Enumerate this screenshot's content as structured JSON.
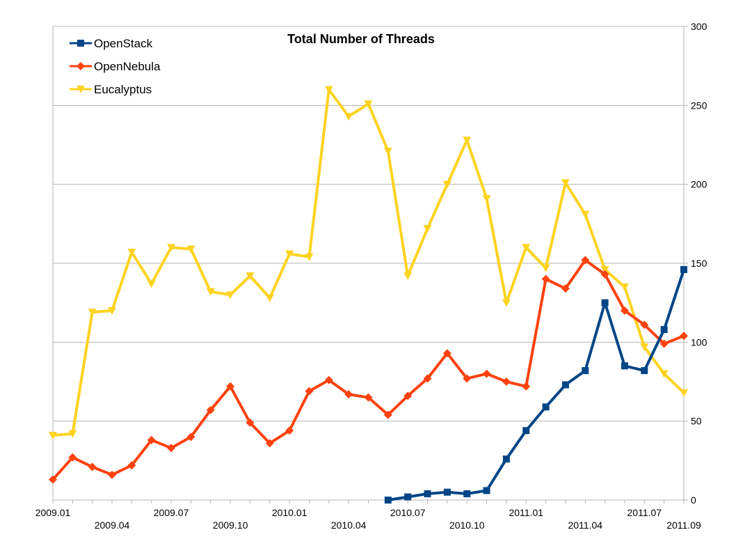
{
  "chart_data": {
    "type": "line",
    "title": "Total Number of Threads",
    "xlabel": "",
    "ylabel": "",
    "ylim": [
      0,
      300
    ],
    "yticks": [
      0,
      50,
      100,
      150,
      200,
      250,
      300
    ],
    "y_axis_side": "right",
    "grid": true,
    "legend_position": "top-left",
    "x": [
      "2009.01",
      "2009.02",
      "2009.03",
      "2009.04",
      "2009.05",
      "2009.06",
      "2009.07",
      "2009.08",
      "2009.09",
      "2009.10",
      "2009.11",
      "2009.12",
      "2010.01",
      "2010.02",
      "2010.03",
      "2010.04",
      "2010.05",
      "2010.06",
      "2010.07",
      "2010.08",
      "2010.09",
      "2010.10",
      "2010.11",
      "2010.12",
      "2011.01",
      "2011.02",
      "2011.03",
      "2011.04",
      "2011.05",
      "2011.06",
      "2011.07",
      "2011.08",
      "2011.09"
    ],
    "xtick_labels": [
      {
        "label": "2009.01",
        "index": 0,
        "row": 0
      },
      {
        "label": "2009.04",
        "index": 3,
        "row": 1
      },
      {
        "label": "2009.07",
        "index": 6,
        "row": 0
      },
      {
        "label": "2009.10",
        "index": 9,
        "row": 1
      },
      {
        "label": "2010.01",
        "index": 12,
        "row": 0
      },
      {
        "label": "2010.04",
        "index": 15,
        "row": 1
      },
      {
        "label": "2010.07",
        "index": 18,
        "row": 0
      },
      {
        "label": "2010.10",
        "index": 21,
        "row": 1
      },
      {
        "label": "2011.01",
        "index": 24,
        "row": 0
      },
      {
        "label": "2011.04",
        "index": 27,
        "row": 1
      },
      {
        "label": "2011.07",
        "index": 30,
        "row": 0
      },
      {
        "label": "2011.09",
        "index": 32,
        "row": 1
      }
    ],
    "series": [
      {
        "name": "OpenStack",
        "color": "#004586",
        "marker": "square",
        "values": [
          null,
          null,
          null,
          null,
          null,
          null,
          null,
          null,
          null,
          null,
          null,
          null,
          null,
          null,
          null,
          null,
          null,
          0,
          2,
          4,
          5,
          4,
          6,
          26,
          44,
          59,
          73,
          82,
          125,
          85,
          82,
          108,
          146
        ]
      },
      {
        "name": "OpenNebula",
        "color": "#ff420e",
        "marker": "diamond",
        "values": [
          13,
          27,
          21,
          16,
          22,
          38,
          33,
          40,
          57,
          72,
          49,
          36,
          44,
          69,
          76,
          67,
          65,
          54,
          66,
          77,
          93,
          77,
          80,
          75,
          72,
          140,
          134,
          152,
          143,
          120,
          111,
          99,
          104
        ]
      },
      {
        "name": "Eucalyptus",
        "color": "#ffd320",
        "marker": "triangle-down",
        "values": [
          41,
          42,
          119,
          120,
          157,
          137,
          160,
          159,
          132,
          130,
          142,
          128,
          156,
          154,
          260,
          243,
          251,
          221,
          142,
          172,
          200,
          228,
          191,
          125,
          160,
          147,
          201,
          181,
          146,
          135,
          97,
          80,
          68
        ]
      }
    ]
  }
}
